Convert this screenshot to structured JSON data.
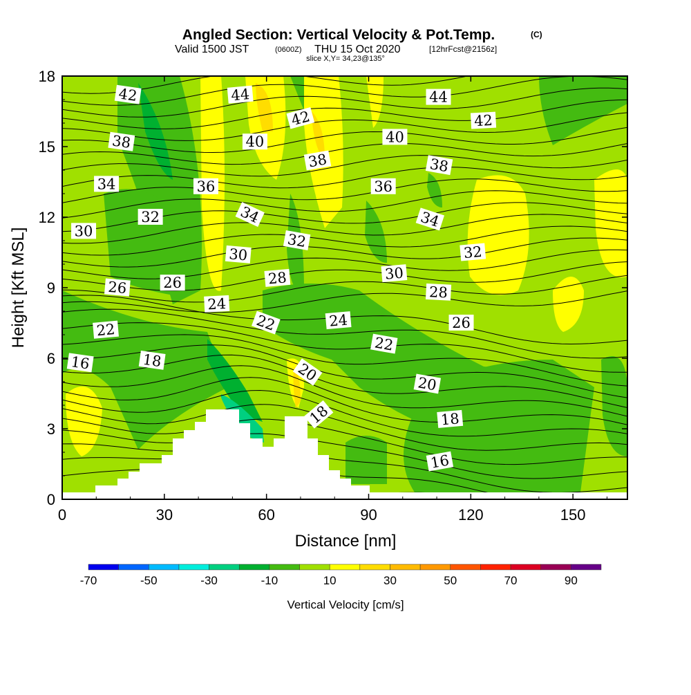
{
  "chart_data": {
    "type": "heatmap",
    "title": "Angled Section: Vertical Velocity & Pot.Temp.",
    "title_mark": "(C)",
    "subtitle_prefix": "Valid 1500 JST",
    "subtitle_utc": "(0600Z)",
    "subtitle_date": "THU 15 Oct 2020",
    "subtitle_fcst": "[12hrFcst@2156z]",
    "slice": "slice X,Y= 34,23@135°",
    "xlabel": "Distance [nm]",
    "ylabel": "Height [Kft MSL]",
    "xlim": [
      0,
      166
    ],
    "ylim": [
      0,
      18
    ],
    "xticks": [
      0,
      30,
      60,
      90,
      120,
      150
    ],
    "yticks": [
      0,
      3,
      6,
      9,
      12,
      15,
      18
    ],
    "colorbar": {
      "label": "Vertical Velocity [cm/s]",
      "levels": [
        -70,
        -60,
        -50,
        -40,
        -30,
        -20,
        -10,
        0,
        10,
        20,
        30,
        40,
        50,
        60,
        70,
        80,
        90,
        100
      ],
      "tick_labels": [
        "-70",
        "-50",
        "-30",
        "-10",
        "10",
        "30",
        "50",
        "70",
        "90"
      ],
      "colors": [
        "#0000ee",
        "#0066ff",
        "#00bbff",
        "#00eedd",
        "#00d080",
        "#00b030",
        "#44bb11",
        "#a0e000",
        "#ffff00",
        "#ffdd00",
        "#ffbb00",
        "#ff9900",
        "#ff5500",
        "#ff2200",
        "#dd0022",
        "#990055",
        "#660088"
      ]
    },
    "contour_labels": [
      {
        "text": "42",
        "x": 19.3,
        "y": 17.2,
        "rot": 8
      },
      {
        "text": "44",
        "x": 52.3,
        "y": 17.2,
        "rot": -5
      },
      {
        "text": "44",
        "x": 110.5,
        "y": 17.1,
        "rot": 0
      },
      {
        "text": "42",
        "x": 70,
        "y": 16.2,
        "rot": -15
      },
      {
        "text": "42",
        "x": 123.7,
        "y": 16.1,
        "rot": -3
      },
      {
        "text": "38",
        "x": 17.4,
        "y": 15.2,
        "rot": 8
      },
      {
        "text": "40",
        "x": 56.6,
        "y": 15.2,
        "rot": 0
      },
      {
        "text": "40",
        "x": 97.7,
        "y": 15.4,
        "rot": 0
      },
      {
        "text": "38",
        "x": 75,
        "y": 14.4,
        "rot": -10
      },
      {
        "text": "38",
        "x": 110.7,
        "y": 14.2,
        "rot": 10
      },
      {
        "text": "34",
        "x": 13,
        "y": 13.4,
        "rot": 0
      },
      {
        "text": "36",
        "x": 42.2,
        "y": 13.3,
        "rot": 0
      },
      {
        "text": "36",
        "x": 94.3,
        "y": 13.3,
        "rot": 0
      },
      {
        "text": "32",
        "x": 25.9,
        "y": 12,
        "rot": 0
      },
      {
        "text": "34",
        "x": 55.1,
        "y": 12.1,
        "rot": 25
      },
      {
        "text": "34",
        "x": 108,
        "y": 11.9,
        "rot": 18
      },
      {
        "text": "30",
        "x": 6.3,
        "y": 11.4,
        "rot": 0
      },
      {
        "text": "32",
        "x": 68.9,
        "y": 11,
        "rot": 10
      },
      {
        "text": "32",
        "x": 120.6,
        "y": 10.5,
        "rot": -5
      },
      {
        "text": "30",
        "x": 51.7,
        "y": 10.4,
        "rot": 5
      },
      {
        "text": "30",
        "x": 97.5,
        "y": 9.6,
        "rot": -5
      },
      {
        "text": "28",
        "x": 63.2,
        "y": 9.4,
        "rot": -5
      },
      {
        "text": "28",
        "x": 110.5,
        "y": 8.8,
        "rot": 3
      },
      {
        "text": "26",
        "x": 16.2,
        "y": 9,
        "rot": 5
      },
      {
        "text": "26",
        "x": 32.4,
        "y": 9.2,
        "rot": 0
      },
      {
        "text": "24",
        "x": 45.4,
        "y": 8.3,
        "rot": -3
      },
      {
        "text": "22",
        "x": 59.8,
        "y": 7.5,
        "rot": 20
      },
      {
        "text": "24",
        "x": 81.1,
        "y": 7.6,
        "rot": -5
      },
      {
        "text": "26",
        "x": 117.2,
        "y": 7.5,
        "rot": 0
      },
      {
        "text": "22",
        "x": 12.8,
        "y": 7.2,
        "rot": -5
      },
      {
        "text": "22",
        "x": 94.5,
        "y": 6.6,
        "rot": 10
      },
      {
        "text": "16",
        "x": 5.3,
        "y": 5.8,
        "rot": 8
      },
      {
        "text": "18",
        "x": 26.4,
        "y": 5.9,
        "rot": 8
      },
      {
        "text": "20",
        "x": 72,
        "y": 5.4,
        "rot": 35
      },
      {
        "text": "20",
        "x": 107.2,
        "y": 4.9,
        "rot": 10
      },
      {
        "text": "18",
        "x": 75.4,
        "y": 3.6,
        "rot": -40
      },
      {
        "text": "18",
        "x": 113.9,
        "y": 3.4,
        "rot": -5
      },
      {
        "text": "16",
        "x": 110.9,
        "y": 1.6,
        "rot": -10
      }
    ]
  }
}
